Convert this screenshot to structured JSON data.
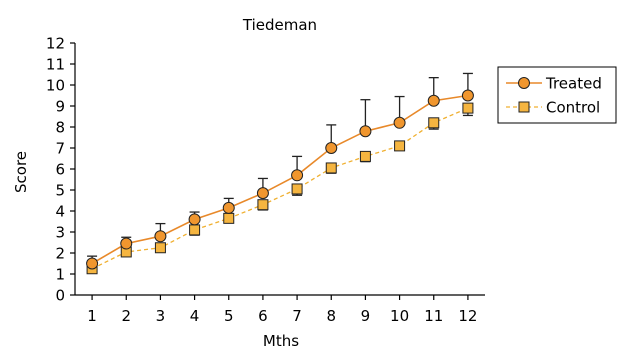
{
  "chart_data": {
    "type": "line",
    "title": "Tiedeman",
    "xlabel": "Mths",
    "ylabel": "Score",
    "x": [
      1,
      2,
      3,
      4,
      5,
      6,
      7,
      8,
      9,
      10,
      11,
      12
    ],
    "xlim": [
      0.5,
      12.5
    ],
    "ylim": [
      0,
      12
    ],
    "yticks": [
      0,
      1,
      2,
      3,
      4,
      5,
      6,
      7,
      8,
      9,
      10,
      11,
      12
    ],
    "grid": false,
    "legend_position": "right",
    "series": [
      {
        "name": "Treated",
        "marker": "circle",
        "line": "solid",
        "color": "#e8892a",
        "fill": "#f0962e",
        "values": [
          1.5,
          2.45,
          2.8,
          3.6,
          4.15,
          4.85,
          5.7,
          7.0,
          7.8,
          8.2,
          9.25,
          9.5
        ],
        "error_upper": [
          1.85,
          2.75,
          3.4,
          3.95,
          4.6,
          5.55,
          6.6,
          8.1,
          9.3,
          9.45,
          10.35,
          10.55
        ]
      },
      {
        "name": "Control",
        "marker": "square",
        "line": "dashed",
        "color": "#f0b030",
        "fill": "#f5b540",
        "values": [
          1.25,
          2.05,
          2.25,
          3.1,
          3.65,
          4.3,
          5.05,
          6.05,
          6.6,
          7.1,
          8.2,
          8.9
        ],
        "error_lower": [
          1.05,
          1.85,
          2.05,
          2.85,
          3.45,
          4.05,
          4.75,
          5.8,
          6.35,
          6.9,
          7.9,
          8.55
        ]
      }
    ]
  }
}
